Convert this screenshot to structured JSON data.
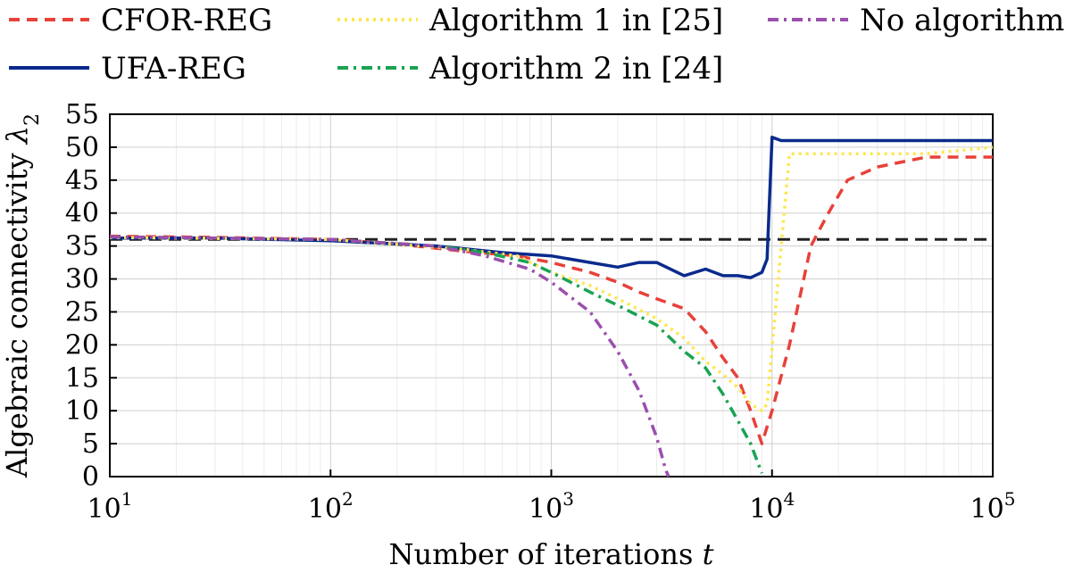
{
  "chart_data": {
    "type": "line",
    "xscale": "log",
    "xlim": [
      10,
      100000
    ],
    "ylim": [
      0,
      55
    ],
    "xlabel": "Number of iterations",
    "xlabel_var": "t",
    "ylabel": "Algebraic connectivity",
    "ylabel_var": "λ",
    "ylabel_sub": "2",
    "xticks": [
      {
        "value": 10,
        "base": "10",
        "exp": "1"
      },
      {
        "value": 100,
        "base": "10",
        "exp": "2"
      },
      {
        "value": 1000,
        "base": "10",
        "exp": "3"
      },
      {
        "value": 10000,
        "base": "10",
        "exp": "4"
      },
      {
        "value": 100000,
        "base": "10",
        "exp": "5"
      }
    ],
    "yticks": [
      "0",
      "5",
      "10",
      "15",
      "20",
      "25",
      "30",
      "35",
      "40",
      "45",
      "50",
      "55"
    ],
    "grid": true,
    "legend_position": "top",
    "reference_line": {
      "y": 36,
      "color": "#222222",
      "style": "dashed"
    },
    "series": [
      {
        "name": "CFOR-REG",
        "color": "#e8413a",
        "style": "dashed",
        "points": [
          [
            10,
            36.5
          ],
          [
            30,
            36.3
          ],
          [
            100,
            36
          ],
          [
            200,
            35.3
          ],
          [
            400,
            34.2
          ],
          [
            700,
            33.5
          ],
          [
            1000,
            32.5
          ],
          [
            1500,
            31
          ],
          [
            2000,
            29.5
          ],
          [
            2500,
            28
          ],
          [
            3000,
            27
          ],
          [
            4000,
            25.5
          ],
          [
            5000,
            22
          ],
          [
            6000,
            18
          ],
          [
            7000,
            15
          ],
          [
            8000,
            10
          ],
          [
            9000,
            5
          ],
          [
            10000,
            10
          ],
          [
            12000,
            20
          ],
          [
            15000,
            35
          ],
          [
            18000,
            40
          ],
          [
            22000,
            45
          ],
          [
            30000,
            47
          ],
          [
            50000,
            48.5
          ],
          [
            100000,
            48.5
          ]
        ]
      },
      {
        "name": "UFA-REG",
        "color": "#0a2a8c",
        "style": "solid",
        "points": [
          [
            10,
            36.2
          ],
          [
            30,
            36.2
          ],
          [
            100,
            35.8
          ],
          [
            300,
            35
          ],
          [
            600,
            34
          ],
          [
            1000,
            33.5
          ],
          [
            1500,
            32.5
          ],
          [
            2000,
            31.8
          ],
          [
            2500,
            32.5
          ],
          [
            3000,
            32.5
          ],
          [
            4000,
            30.5
          ],
          [
            5000,
            31.5
          ],
          [
            6000,
            30.5
          ],
          [
            7000,
            30.5
          ],
          [
            8000,
            30.2
          ],
          [
            9000,
            31
          ],
          [
            9500,
            33
          ],
          [
            10000,
            51.5
          ],
          [
            11000,
            51
          ],
          [
            100000,
            51
          ]
        ]
      },
      {
        "name": "Algorithm 1 in [25]",
        "color": "#ffe64d",
        "style": "dotted",
        "points": [
          [
            10,
            36.3
          ],
          [
            100,
            36
          ],
          [
            400,
            34.5
          ],
          [
            700,
            33.5
          ],
          [
            1000,
            31
          ],
          [
            1500,
            29
          ],
          [
            2000,
            27
          ],
          [
            3000,
            24
          ],
          [
            4000,
            21
          ],
          [
            5000,
            17.5
          ],
          [
            6000,
            15.5
          ],
          [
            7000,
            13.5
          ],
          [
            8000,
            11
          ],
          [
            9000,
            10
          ],
          [
            9500,
            11
          ],
          [
            11000,
            35
          ],
          [
            12000,
            49
          ],
          [
            20000,
            49
          ],
          [
            50000,
            49
          ],
          [
            100000,
            50
          ]
        ]
      },
      {
        "name": "Algorithm 2 in [24]",
        "color": "#1aa352",
        "style": "dashdot",
        "points": [
          [
            10,
            36.4
          ],
          [
            100,
            36
          ],
          [
            300,
            35
          ],
          [
            500,
            34
          ],
          [
            800,
            32.5
          ],
          [
            1000,
            31
          ],
          [
            1500,
            28
          ],
          [
            2000,
            26
          ],
          [
            3000,
            23
          ],
          [
            4000,
            19
          ],
          [
            5000,
            16.5
          ],
          [
            6000,
            12.5
          ],
          [
            7000,
            8.5
          ],
          [
            8000,
            5
          ],
          [
            9000,
            0.5
          ]
        ]
      },
      {
        "name": "No algorithm",
        "color": "#9b4fae",
        "style": "dashdot",
        "points": [
          [
            10,
            36.4
          ],
          [
            100,
            36
          ],
          [
            300,
            35
          ],
          [
            500,
            33.5
          ],
          [
            800,
            31.5
          ],
          [
            1000,
            29.5
          ],
          [
            1500,
            25
          ],
          [
            2000,
            19
          ],
          [
            2500,
            13
          ],
          [
            3000,
            6
          ],
          [
            3300,
            1
          ],
          [
            3400,
            0
          ]
        ]
      }
    ]
  }
}
